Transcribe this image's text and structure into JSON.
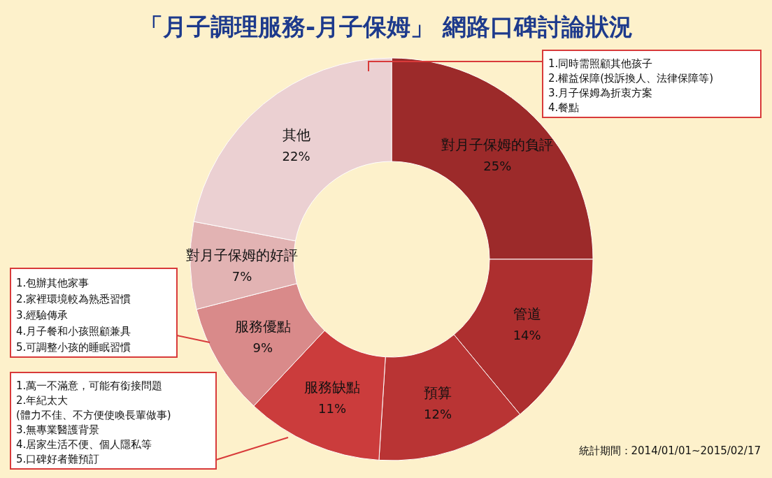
{
  "chart_data": {
    "type": "donut",
    "title": "「月子調理服務-月子保姆」 網路口碑討論狀況",
    "categories": [
      "對月子保姆的負評",
      "管道",
      "預算",
      "服務缺點",
      "服務優點",
      "對月子保姆的好評",
      "其他"
    ],
    "values": [
      25,
      14,
      12,
      11,
      9,
      7,
      22
    ],
    "colors": [
      "#9c2a2a",
      "#ad2f2f",
      "#b93434",
      "#cb3c3c",
      "#d98a8a",
      "#e2b3b3",
      "#ebd0d2"
    ],
    "value_labels": [
      "25%",
      "14%",
      "12%",
      "11%",
      "9%",
      "7%",
      "22%"
    ],
    "annotations": [
      "1.同時需照顧其他孩子\n2.權益保障(投訴換人、法律保障等)\n3.月子保姆為折衷方案\n4.餐點",
      "1.包辦其他家事\n2.家裡環境較為熟悉習慣\n3.經驗傳承\n4.月子餐和小孩照顧兼具\n5.可調整小孩的睡眠習慣",
      "1.萬一不滿意，可能有銜接問題\n2.年紀太大\n(體力不佳、不方便使喚長輩做事)\n3.無專業醫護背景\n4.居家生活不便、個人隱私等\n5.口碑好者難預訂",
      "統計期間：2014/01/01~2015/02/17"
    ]
  }
}
